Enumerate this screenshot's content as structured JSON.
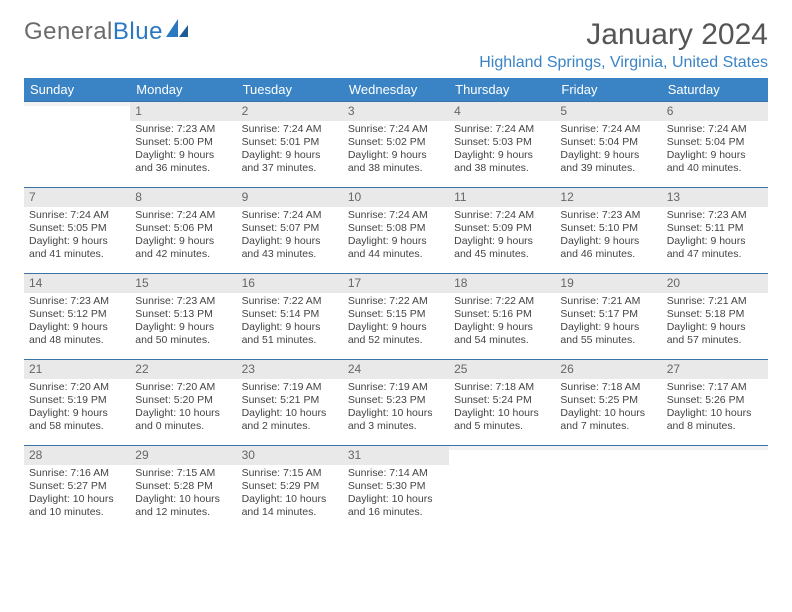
{
  "logo": {
    "word1": "General",
    "word2": "Blue"
  },
  "title": "January 2024",
  "location": "Highland Springs, Virginia, United States",
  "weekdays": [
    "Sunday",
    "Monday",
    "Tuesday",
    "Wednesday",
    "Thursday",
    "Friday",
    "Saturday"
  ],
  "colors": {
    "header_bg": "#3a84c5",
    "header_text": "#ffffff",
    "daynum_bg": "#e9e9e9",
    "border": "#3a74a8",
    "title_color": "#555555",
    "location_color": "#3a84c5",
    "logo_gray": "#6b6b6b",
    "logo_blue": "#2b78c2"
  },
  "fonts": {
    "title_size": 30,
    "location_size": 16,
    "weekday_size": 13,
    "daynum_size": 12,
    "body_size": 10.5
  },
  "weeks": [
    [
      {
        "n": "",
        "sr": "",
        "ss": "",
        "dl": ""
      },
      {
        "n": "1",
        "sr": "Sunrise: 7:23 AM",
        "ss": "Sunset: 5:00 PM",
        "dl": "Daylight: 9 hours and 36 minutes."
      },
      {
        "n": "2",
        "sr": "Sunrise: 7:24 AM",
        "ss": "Sunset: 5:01 PM",
        "dl": "Daylight: 9 hours and 37 minutes."
      },
      {
        "n": "3",
        "sr": "Sunrise: 7:24 AM",
        "ss": "Sunset: 5:02 PM",
        "dl": "Daylight: 9 hours and 38 minutes."
      },
      {
        "n": "4",
        "sr": "Sunrise: 7:24 AM",
        "ss": "Sunset: 5:03 PM",
        "dl": "Daylight: 9 hours and 38 minutes."
      },
      {
        "n": "5",
        "sr": "Sunrise: 7:24 AM",
        "ss": "Sunset: 5:04 PM",
        "dl": "Daylight: 9 hours and 39 minutes."
      },
      {
        "n": "6",
        "sr": "Sunrise: 7:24 AM",
        "ss": "Sunset: 5:04 PM",
        "dl": "Daylight: 9 hours and 40 minutes."
      }
    ],
    [
      {
        "n": "7",
        "sr": "Sunrise: 7:24 AM",
        "ss": "Sunset: 5:05 PM",
        "dl": "Daylight: 9 hours and 41 minutes."
      },
      {
        "n": "8",
        "sr": "Sunrise: 7:24 AM",
        "ss": "Sunset: 5:06 PM",
        "dl": "Daylight: 9 hours and 42 minutes."
      },
      {
        "n": "9",
        "sr": "Sunrise: 7:24 AM",
        "ss": "Sunset: 5:07 PM",
        "dl": "Daylight: 9 hours and 43 minutes."
      },
      {
        "n": "10",
        "sr": "Sunrise: 7:24 AM",
        "ss": "Sunset: 5:08 PM",
        "dl": "Daylight: 9 hours and 44 minutes."
      },
      {
        "n": "11",
        "sr": "Sunrise: 7:24 AM",
        "ss": "Sunset: 5:09 PM",
        "dl": "Daylight: 9 hours and 45 minutes."
      },
      {
        "n": "12",
        "sr": "Sunrise: 7:23 AM",
        "ss": "Sunset: 5:10 PM",
        "dl": "Daylight: 9 hours and 46 minutes."
      },
      {
        "n": "13",
        "sr": "Sunrise: 7:23 AM",
        "ss": "Sunset: 5:11 PM",
        "dl": "Daylight: 9 hours and 47 minutes."
      }
    ],
    [
      {
        "n": "14",
        "sr": "Sunrise: 7:23 AM",
        "ss": "Sunset: 5:12 PM",
        "dl": "Daylight: 9 hours and 48 minutes."
      },
      {
        "n": "15",
        "sr": "Sunrise: 7:23 AM",
        "ss": "Sunset: 5:13 PM",
        "dl": "Daylight: 9 hours and 50 minutes."
      },
      {
        "n": "16",
        "sr": "Sunrise: 7:22 AM",
        "ss": "Sunset: 5:14 PM",
        "dl": "Daylight: 9 hours and 51 minutes."
      },
      {
        "n": "17",
        "sr": "Sunrise: 7:22 AM",
        "ss": "Sunset: 5:15 PM",
        "dl": "Daylight: 9 hours and 52 minutes."
      },
      {
        "n": "18",
        "sr": "Sunrise: 7:22 AM",
        "ss": "Sunset: 5:16 PM",
        "dl": "Daylight: 9 hours and 54 minutes."
      },
      {
        "n": "19",
        "sr": "Sunrise: 7:21 AM",
        "ss": "Sunset: 5:17 PM",
        "dl": "Daylight: 9 hours and 55 minutes."
      },
      {
        "n": "20",
        "sr": "Sunrise: 7:21 AM",
        "ss": "Sunset: 5:18 PM",
        "dl": "Daylight: 9 hours and 57 minutes."
      }
    ],
    [
      {
        "n": "21",
        "sr": "Sunrise: 7:20 AM",
        "ss": "Sunset: 5:19 PM",
        "dl": "Daylight: 9 hours and 58 minutes."
      },
      {
        "n": "22",
        "sr": "Sunrise: 7:20 AM",
        "ss": "Sunset: 5:20 PM",
        "dl": "Daylight: 10 hours and 0 minutes."
      },
      {
        "n": "23",
        "sr": "Sunrise: 7:19 AM",
        "ss": "Sunset: 5:21 PM",
        "dl": "Daylight: 10 hours and 2 minutes."
      },
      {
        "n": "24",
        "sr": "Sunrise: 7:19 AM",
        "ss": "Sunset: 5:23 PM",
        "dl": "Daylight: 10 hours and 3 minutes."
      },
      {
        "n": "25",
        "sr": "Sunrise: 7:18 AM",
        "ss": "Sunset: 5:24 PM",
        "dl": "Daylight: 10 hours and 5 minutes."
      },
      {
        "n": "26",
        "sr": "Sunrise: 7:18 AM",
        "ss": "Sunset: 5:25 PM",
        "dl": "Daylight: 10 hours and 7 minutes."
      },
      {
        "n": "27",
        "sr": "Sunrise: 7:17 AM",
        "ss": "Sunset: 5:26 PM",
        "dl": "Daylight: 10 hours and 8 minutes."
      }
    ],
    [
      {
        "n": "28",
        "sr": "Sunrise: 7:16 AM",
        "ss": "Sunset: 5:27 PM",
        "dl": "Daylight: 10 hours and 10 minutes."
      },
      {
        "n": "29",
        "sr": "Sunrise: 7:15 AM",
        "ss": "Sunset: 5:28 PM",
        "dl": "Daylight: 10 hours and 12 minutes."
      },
      {
        "n": "30",
        "sr": "Sunrise: 7:15 AM",
        "ss": "Sunset: 5:29 PM",
        "dl": "Daylight: 10 hours and 14 minutes."
      },
      {
        "n": "31",
        "sr": "Sunrise: 7:14 AM",
        "ss": "Sunset: 5:30 PM",
        "dl": "Daylight: 10 hours and 16 minutes."
      },
      {
        "n": "",
        "sr": "",
        "ss": "",
        "dl": ""
      },
      {
        "n": "",
        "sr": "",
        "ss": "",
        "dl": ""
      },
      {
        "n": "",
        "sr": "",
        "ss": "",
        "dl": ""
      }
    ]
  ]
}
